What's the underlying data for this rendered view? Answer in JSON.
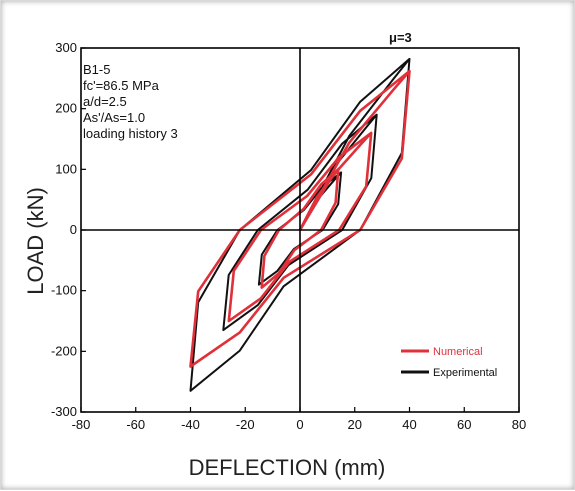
{
  "chart_data": {
    "type": "line",
    "title": "",
    "xlabel": "DEFLECTION  (mm)",
    "ylabel": "LOAD  (kN)",
    "xlim": [
      -80,
      80
    ],
    "ylim": [
      -300,
      300
    ],
    "xticks": [
      -80,
      -60,
      -40,
      -20,
      0,
      20,
      40,
      60,
      80
    ],
    "yticks": [
      300,
      200,
      100,
      0,
      -100,
      -200,
      -300
    ],
    "grid": false,
    "zero_lines": true,
    "legend_position": "bottom-right",
    "annotation": "μ=3",
    "specimen_info": [
      "B1-5",
      "fc'=86.5 MPa",
      "a/d=2.5",
      "As'/As=1.0",
      "loading history 3"
    ],
    "series": [
      {
        "name": "Numerical",
        "color": "#e0303a",
        "loops": [
          {
            "amp": 14,
            "ymax": 100,
            "ymin": -95
          },
          {
            "amp": 26,
            "ymax": 160,
            "ymin": -150
          },
          {
            "amp": 40,
            "ymax": 262,
            "ymin": -225
          }
        ]
      },
      {
        "name": "Experimental",
        "color": "#111111",
        "loops": [
          {
            "amp": 15,
            "ymax": 95,
            "ymin": -90
          },
          {
            "amp": 28,
            "ymax": 190,
            "ymin": -165
          },
          {
            "amp": 40,
            "ymax": 282,
            "ymin": -265
          }
        ]
      }
    ]
  }
}
